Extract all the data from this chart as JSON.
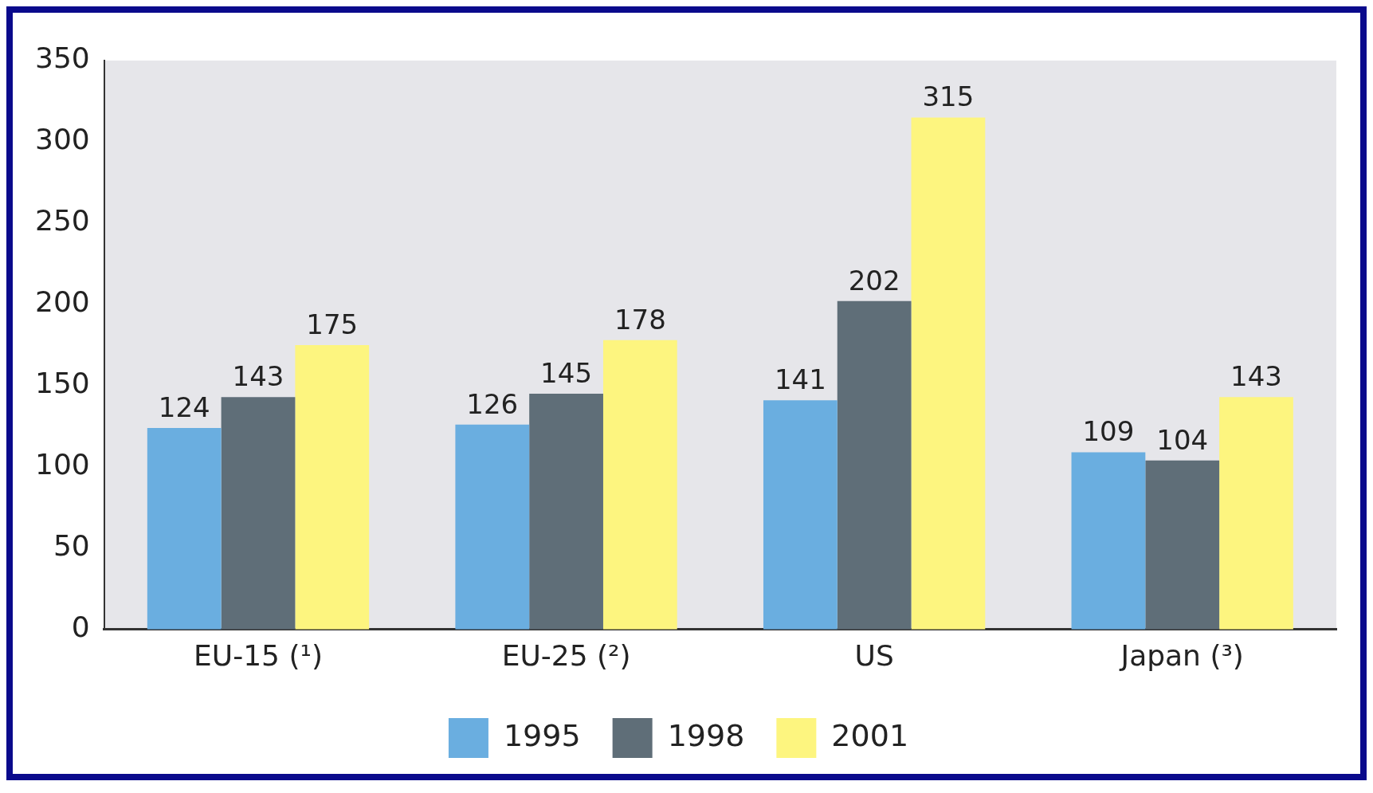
{
  "chart_data": {
    "type": "bar",
    "categories": [
      "EU-15 (¹)",
      "EU-25 (²)",
      "US",
      "Japan (³)"
    ],
    "series": [
      {
        "name": "1995",
        "color": "#6aaee0",
        "values": [
          124,
          126,
          141,
          109
        ]
      },
      {
        "name": "1998",
        "color": "#5f6e78",
        "values": [
          143,
          145,
          202,
          104
        ]
      },
      {
        "name": "2001",
        "color": "#fdf57f",
        "values": [
          175,
          178,
          315,
          143
        ]
      }
    ],
    "ylim": [
      0,
      350
    ],
    "yticks": [
      0,
      50,
      100,
      150,
      200,
      250,
      300,
      350
    ],
    "grid": false,
    "legend": "bottom",
    "data_labels": true
  }
}
